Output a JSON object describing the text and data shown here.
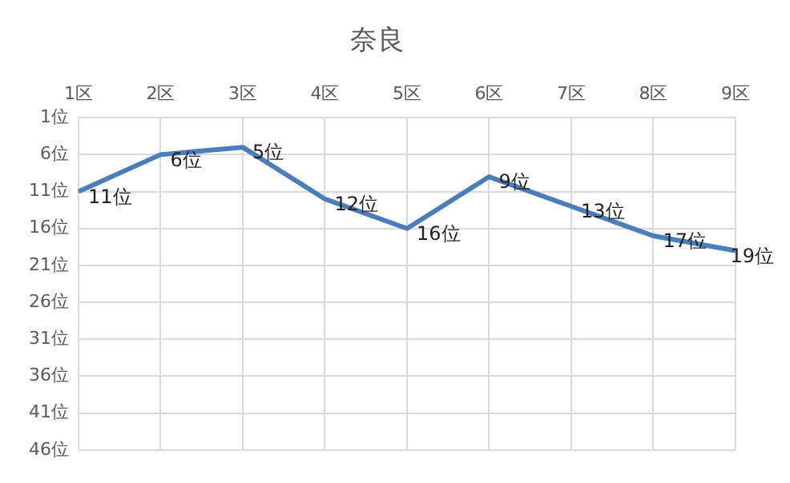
{
  "chart_data": {
    "type": "line",
    "title": "奈良",
    "categories": [
      "1区",
      "2区",
      "3区",
      "4区",
      "5区",
      "6区",
      "7区",
      "8区",
      "9区"
    ],
    "series": [
      {
        "color": "#4a7ebb",
        "values": [
          11,
          6,
          5,
          12,
          16,
          9,
          13,
          17,
          19
        ],
        "value_labels": [
          "11位",
          "6位",
          "5位",
          "12位",
          "16位",
          "9位",
          "13位",
          "17位",
          "19位"
        ]
      }
    ],
    "ylim": [
      46,
      1
    ],
    "yticks": [
      {
        "value": 1,
        "label": "1位"
      },
      {
        "value": 6,
        "label": "6位"
      },
      {
        "value": 11,
        "label": "11位"
      },
      {
        "value": 16,
        "label": "16位"
      },
      {
        "value": 21,
        "label": "21位"
      },
      {
        "value": 26,
        "label": "26位"
      },
      {
        "value": 31,
        "label": "31位"
      },
      {
        "value": 36,
        "label": "36位"
      },
      {
        "value": 41,
        "label": "41位"
      },
      {
        "value": 46,
        "label": "46位"
      }
    ],
    "grid": true,
    "legend": false,
    "marker": "none",
    "line_style": "solid"
  }
}
